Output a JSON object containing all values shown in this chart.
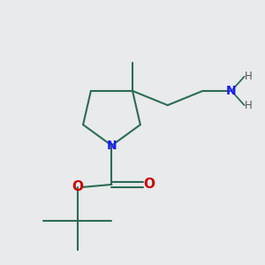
{
  "background_color": "#e8eaeb",
  "bond_color": "#2d6b55",
  "N_color": "#1a1aff",
  "O_color": "#cc0000",
  "NH2_N_color": "#1a1aff",
  "NH2_H_color": "#555555",
  "line_width": 1.5,
  "fig_w": 3.0,
  "fig_h": 3.0,
  "dpi": 100,
  "xlim": [
    0,
    10
  ],
  "ylim": [
    0,
    10
  ]
}
